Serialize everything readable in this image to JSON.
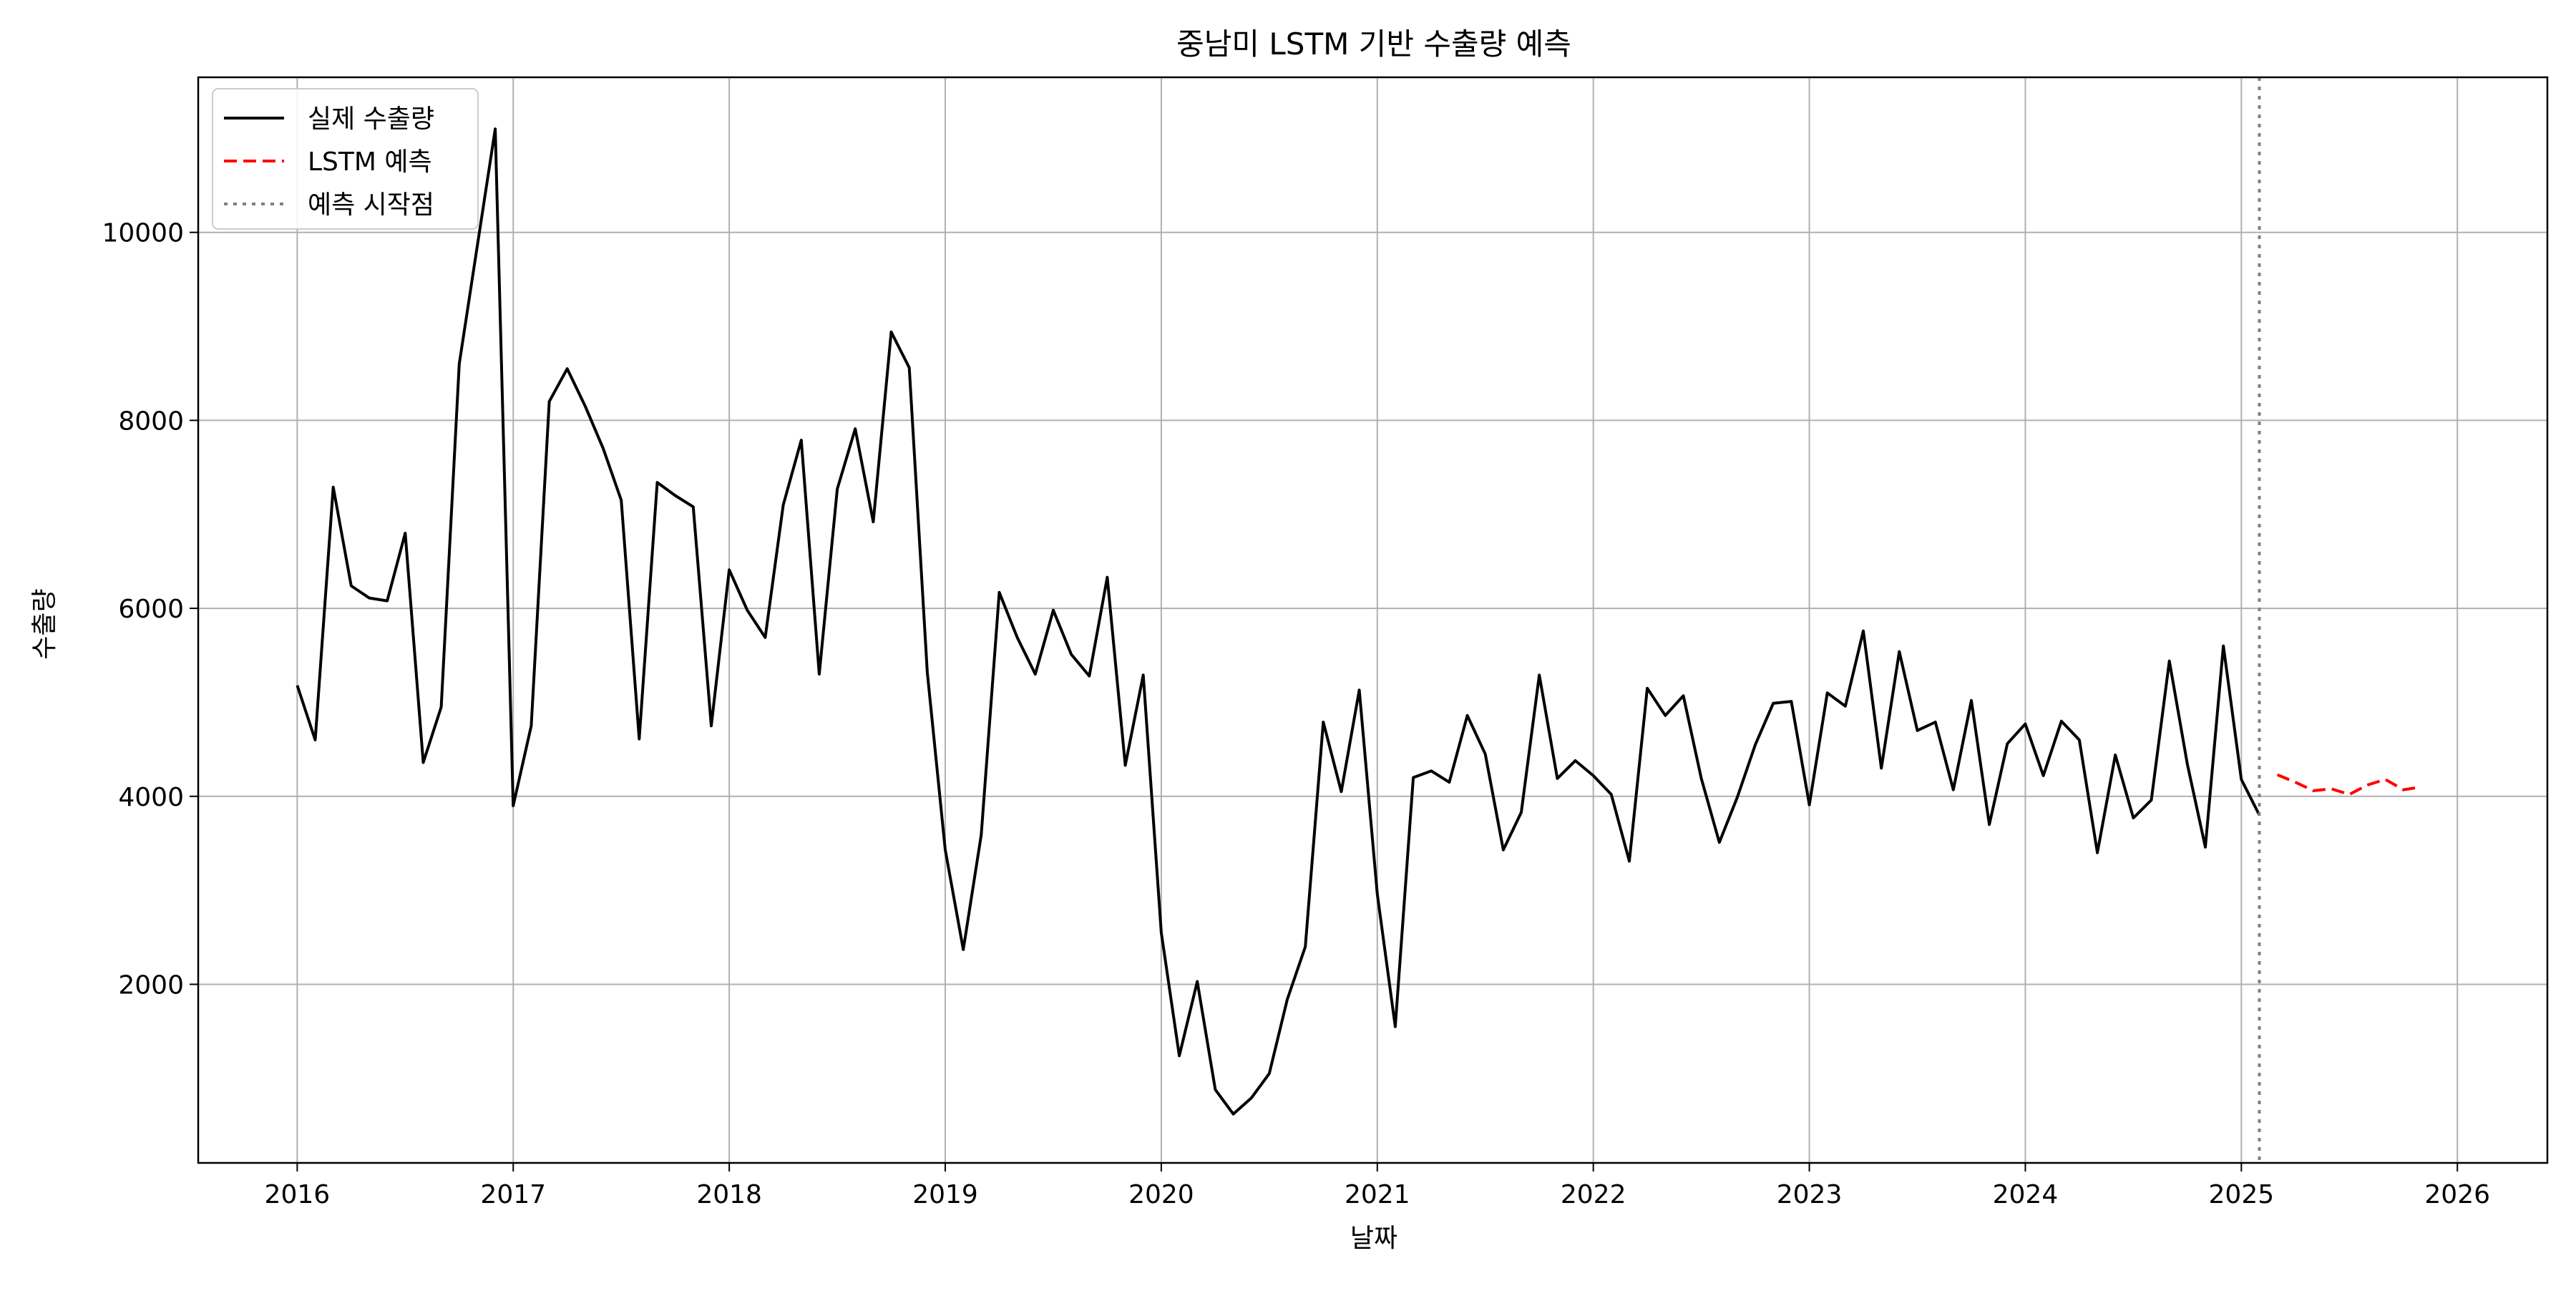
{
  "chart_data": {
    "type": "line",
    "title": "중남미 LSTM 기반 수출량 예측",
    "xlabel": "날짜",
    "ylabel": "수출량",
    "x_ticks": [
      "2016",
      "2017",
      "2018",
      "2019",
      "2020",
      "2021",
      "2022",
      "2023",
      "2024",
      "2025",
      "2026"
    ],
    "y_ticks": [
      2000,
      4000,
      6000,
      8000,
      10000
    ],
    "xlim": [
      "2015-07",
      "2026-06"
    ],
    "ylim": [
      100,
      11650
    ],
    "grid": true,
    "legend_position": "top-left",
    "series": [
      {
        "name": "실제 수출량",
        "color": "#000000",
        "style": "solid",
        "start": "2016-01",
        "frequency": "monthly",
        "values": [
          5180,
          4600,
          7290,
          6240,
          6110,
          6080,
          6800,
          4360,
          4950,
          8600,
          9850,
          11100,
          3900,
          4750,
          8200,
          8550,
          8150,
          7700,
          7150,
          4610,
          7340,
          7200,
          7080,
          4750,
          6410,
          5980,
          5690,
          7100,
          7790,
          5300,
          7270,
          7910,
          6920,
          8940,
          8560,
          5320,
          3430,
          2370,
          3590,
          6170,
          5690,
          5300,
          5980,
          5510,
          5280,
          6330,
          4330,
          5290,
          2550,
          1240,
          2030,
          880,
          620,
          790,
          1050,
          1840,
          2400,
          4790,
          4050,
          5130,
          2960,
          1550,
          4200,
          4270,
          4150,
          4860,
          4450,
          3430,
          3830,
          5290,
          4190,
          4380,
          4220,
          4020,
          3310,
          5150,
          4860,
          5070,
          4190,
          3510,
          3990,
          4550,
          4990,
          5010,
          3910,
          5100,
          4960,
          5760,
          4300,
          5540,
          4700,
          4790,
          4070,
          5020,
          3700,
          4560,
          4770,
          4220,
          4800,
          4600,
          3400,
          4440,
          3770,
          3960,
          5440,
          4340,
          3460,
          5600,
          4180,
          3800
        ]
      },
      {
        "name": "LSTM 예측",
        "color": "#ff0000",
        "style": "dashed",
        "start": "2025-03",
        "frequency": "monthly",
        "values": [
          4230,
          4150,
          4060,
          4080,
          4020,
          4120,
          4180,
          4070,
          4100
        ]
      }
    ],
    "vline": {
      "name": "예측 시작점",
      "x": "2025-02",
      "color": "#808080",
      "style": "dotted"
    }
  }
}
